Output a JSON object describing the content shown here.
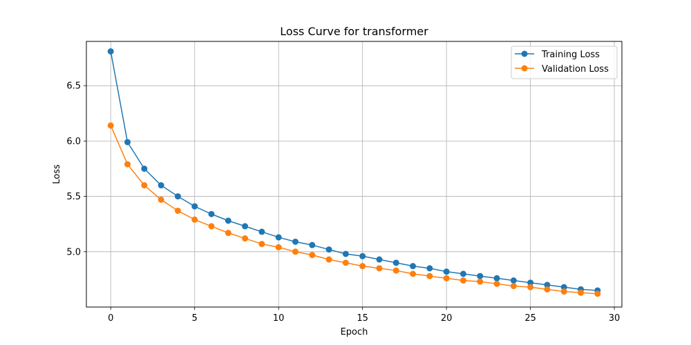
{
  "chart_data": {
    "type": "line",
    "title": "Loss Curve for transformer",
    "xlabel": "Epoch",
    "ylabel": "Loss",
    "xlim": [
      -1.45,
      30.45
    ],
    "ylim": [
      4.5,
      6.9
    ],
    "x_ticks": [
      0,
      5,
      10,
      15,
      20,
      25,
      30
    ],
    "y_ticks": [
      5.0,
      5.5,
      6.0,
      6.5
    ],
    "x_tick_labels": [
      "0",
      "5",
      "10",
      "15",
      "20",
      "25",
      "30"
    ],
    "y_tick_labels": [
      "5.0",
      "5.5",
      "6.0",
      "6.5"
    ],
    "grid": true,
    "legend_position": "top-right",
    "x": [
      0,
      1,
      2,
      3,
      4,
      5,
      6,
      7,
      8,
      9,
      10,
      11,
      12,
      13,
      14,
      15,
      16,
      17,
      18,
      19,
      20,
      21,
      22,
      23,
      24,
      25,
      26,
      27,
      28,
      29
    ],
    "series": [
      {
        "name": "Training Loss",
        "color": "#1f77b4",
        "values": [
          6.81,
          5.99,
          5.75,
          5.6,
          5.5,
          5.41,
          5.34,
          5.28,
          5.23,
          5.18,
          5.13,
          5.09,
          5.06,
          5.02,
          4.98,
          4.96,
          4.93,
          4.9,
          4.87,
          4.85,
          4.82,
          4.8,
          4.78,
          4.76,
          4.74,
          4.72,
          4.7,
          4.68,
          4.66,
          4.65
        ]
      },
      {
        "name": "Validation Loss",
        "color": "#ff7f0e",
        "values": [
          6.14,
          5.79,
          5.6,
          5.47,
          5.37,
          5.29,
          5.23,
          5.17,
          5.12,
          5.07,
          5.04,
          5.0,
          4.97,
          4.93,
          4.9,
          4.87,
          4.85,
          4.83,
          4.8,
          4.78,
          4.76,
          4.74,
          4.73,
          4.71,
          4.69,
          4.68,
          4.66,
          4.64,
          4.63,
          4.62
        ]
      }
    ]
  }
}
